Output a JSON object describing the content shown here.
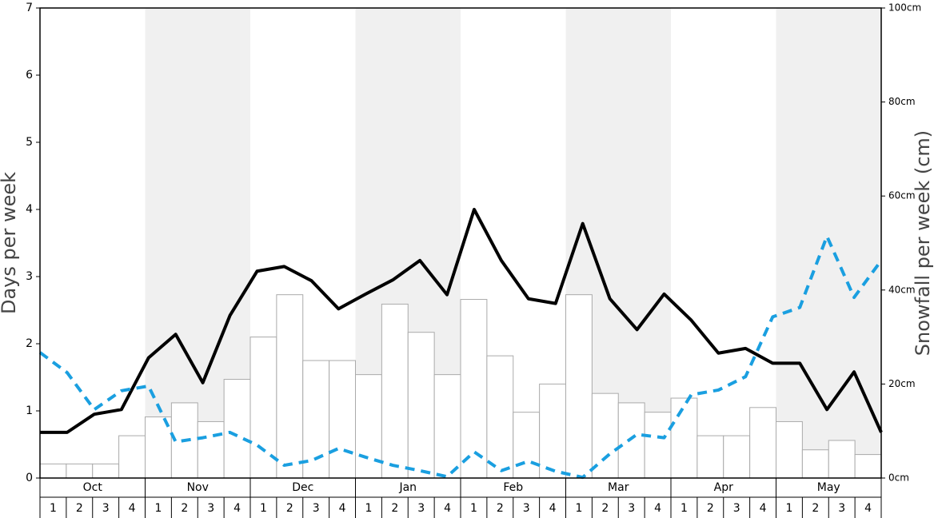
{
  "chart_data": {
    "type": "bar",
    "ylabel": "Days per week",
    "y2label": "Snowfall per week (cm)",
    "months": [
      "Oct",
      "Nov",
      "Dec",
      "Jan",
      "Feb",
      "Mar",
      "Apr",
      "May"
    ],
    "categories": [
      "1",
      "2",
      "3",
      "4",
      "1",
      "2",
      "3",
      "4",
      "1",
      "2",
      "3",
      "4",
      "1",
      "2",
      "3",
      "4",
      "1",
      "2",
      "3",
      "4",
      "1",
      "2",
      "3",
      "4",
      "1",
      "2",
      "3",
      "4",
      "1",
      "2",
      "3",
      "4"
    ],
    "ylim": [
      0,
      7
    ],
    "yticks": [
      0,
      1,
      2,
      3,
      4,
      5,
      6,
      7
    ],
    "y2lim": [
      0,
      100
    ],
    "y2ticks": [
      {
        "value": 0,
        "label": "0cm"
      },
      {
        "value": 20,
        "label": "20cm"
      },
      {
        "value": 40,
        "label": "40cm"
      },
      {
        "value": 60,
        "label": "60cm"
      },
      {
        "value": 80,
        "label": "80cm"
      },
      {
        "value": 100,
        "label": "100cm"
      }
    ],
    "series": [
      {
        "type": "bar",
        "axis": "y2",
        "color": "#ffffff",
        "values": [
          3,
          3,
          3,
          9,
          13,
          16,
          12,
          21,
          30,
          39,
          25,
          25,
          22,
          37,
          31,
          22,
          38,
          26,
          14,
          20,
          39,
          18,
          16,
          14,
          17,
          9,
          9,
          15,
          12,
          6,
          8,
          5
        ]
      },
      {
        "type": "line",
        "color": "#000000",
        "values": [
          0.68,
          0.68,
          0.95,
          1.02,
          1.79,
          2.14,
          1.42,
          2.42,
          3.08,
          3.15,
          2.94,
          2.52,
          2.74,
          2.95,
          3.24,
          2.73,
          4.0,
          3.24,
          2.67,
          2.6,
          3.79,
          2.67,
          2.21,
          2.74,
          2.35,
          1.86,
          1.93,
          1.71,
          1.71,
          1.02,
          1.58,
          0.68
        ]
      },
      {
        "type": "line",
        "color": "#1a9fe0",
        "dashed": true,
        "values": [
          1.87,
          1.57,
          1.02,
          1.3,
          1.37,
          0.54,
          0.6,
          0.68,
          0.49,
          0.19,
          0.26,
          0.44,
          0.31,
          0.19,
          0.11,
          0.02,
          0.39,
          0.11,
          0.25,
          0.1,
          0.01,
          0.36,
          0.65,
          0.6,
          1.24,
          1.31,
          1.51,
          2.4,
          2.54,
          3.6,
          2.69,
          3.24
        ]
      }
    ]
  }
}
